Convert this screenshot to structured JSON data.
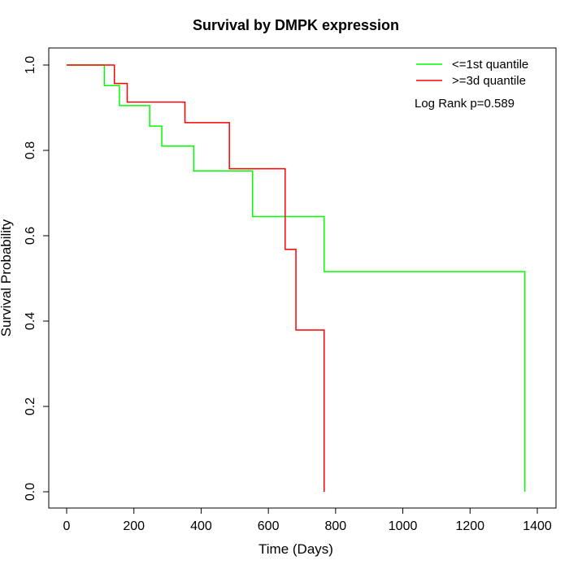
{
  "chart_data": {
    "type": "line",
    "subtype": "kaplan-meier-step",
    "title": "Survival by DMPK expression",
    "xlabel": "Time (Days)",
    "ylabel": "Survival Probability",
    "xlim": [
      0,
      1400
    ],
    "ylim": [
      0,
      1
    ],
    "xticks": [
      0,
      200,
      400,
      600,
      800,
      1000,
      1200,
      1400
    ],
    "yticks": [
      0.0,
      0.2,
      0.4,
      0.6,
      0.8,
      1.0
    ],
    "xtick_labels": [
      "0",
      "200",
      "400",
      "600",
      "800",
      "1000",
      "1200",
      "1400"
    ],
    "ytick_labels": [
      "0.0",
      "0.2",
      "0.4",
      "0.6",
      "0.8",
      "1.0"
    ],
    "grid": false,
    "legend_position": "top-right",
    "annotation": "Log Rank p=0.589",
    "series": [
      {
        "name": "<=1st quantile",
        "color": "#00ff00",
        "steps": [
          {
            "x": 0,
            "y": 1.0
          },
          {
            "x": 112,
            "y": 0.952
          },
          {
            "x": 157,
            "y": 0.905
          },
          {
            "x": 247,
            "y": 0.857
          },
          {
            "x": 283,
            "y": 0.81
          },
          {
            "x": 378,
            "y": 0.752
          },
          {
            "x": 553,
            "y": 0.645
          },
          {
            "x": 766,
            "y": 0.516
          },
          {
            "x": 1363,
            "y": 0.0
          }
        ]
      },
      {
        "name": ">=3d quantile",
        "color": "#ff0000",
        "steps": [
          {
            "x": 0,
            "y": 1.0
          },
          {
            "x": 142,
            "y": 0.957
          },
          {
            "x": 180,
            "y": 0.913
          },
          {
            "x": 352,
            "y": 0.865
          },
          {
            "x": 484,
            "y": 0.757
          },
          {
            "x": 650,
            "y": 0.568
          },
          {
            "x": 682,
            "y": 0.379
          },
          {
            "x": 766,
            "y": 0.0
          }
        ]
      }
    ]
  }
}
